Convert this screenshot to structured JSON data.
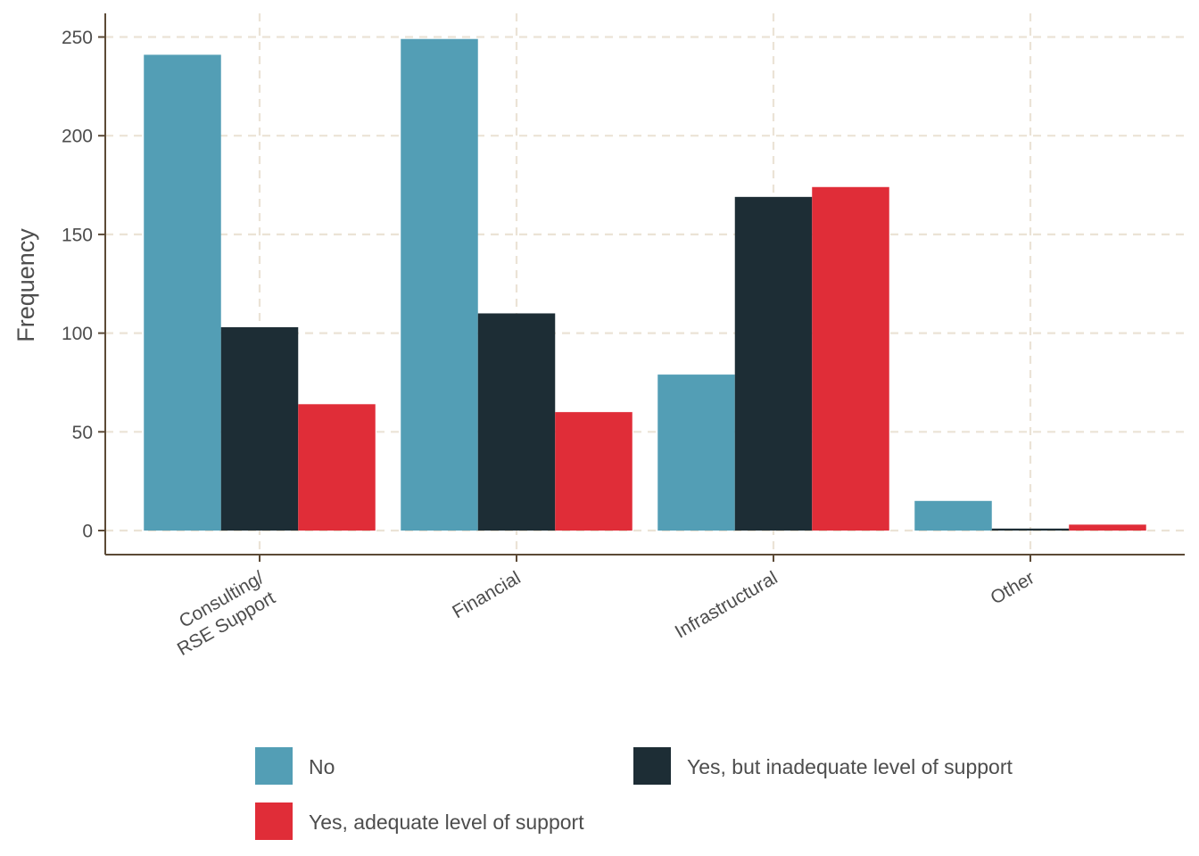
{
  "chart_data": {
    "type": "bar",
    "title": "",
    "xlabel": "",
    "ylabel": "Frequency",
    "categories": [
      [
        "Consulting/",
        "RSE Support"
      ],
      [
        "Financial"
      ],
      [
        "Infrastructural"
      ],
      [
        "Other"
      ]
    ],
    "series": [
      {
        "name": "No",
        "color": "#539EB5",
        "values": [
          241,
          249,
          79,
          15
        ]
      },
      {
        "name": "Yes, but inadequate level of support",
        "color": "#1D2D35",
        "values": [
          103,
          110,
          169,
          1
        ]
      },
      {
        "name": "Yes, adequate level of support",
        "color": "#E02D38",
        "values": [
          64,
          60,
          174,
          3
        ]
      }
    ],
    "ylim": [
      0,
      260
    ],
    "yticks": [
      0,
      50,
      100,
      150,
      200,
      250
    ],
    "grid": true,
    "legend_position": "bottom"
  }
}
